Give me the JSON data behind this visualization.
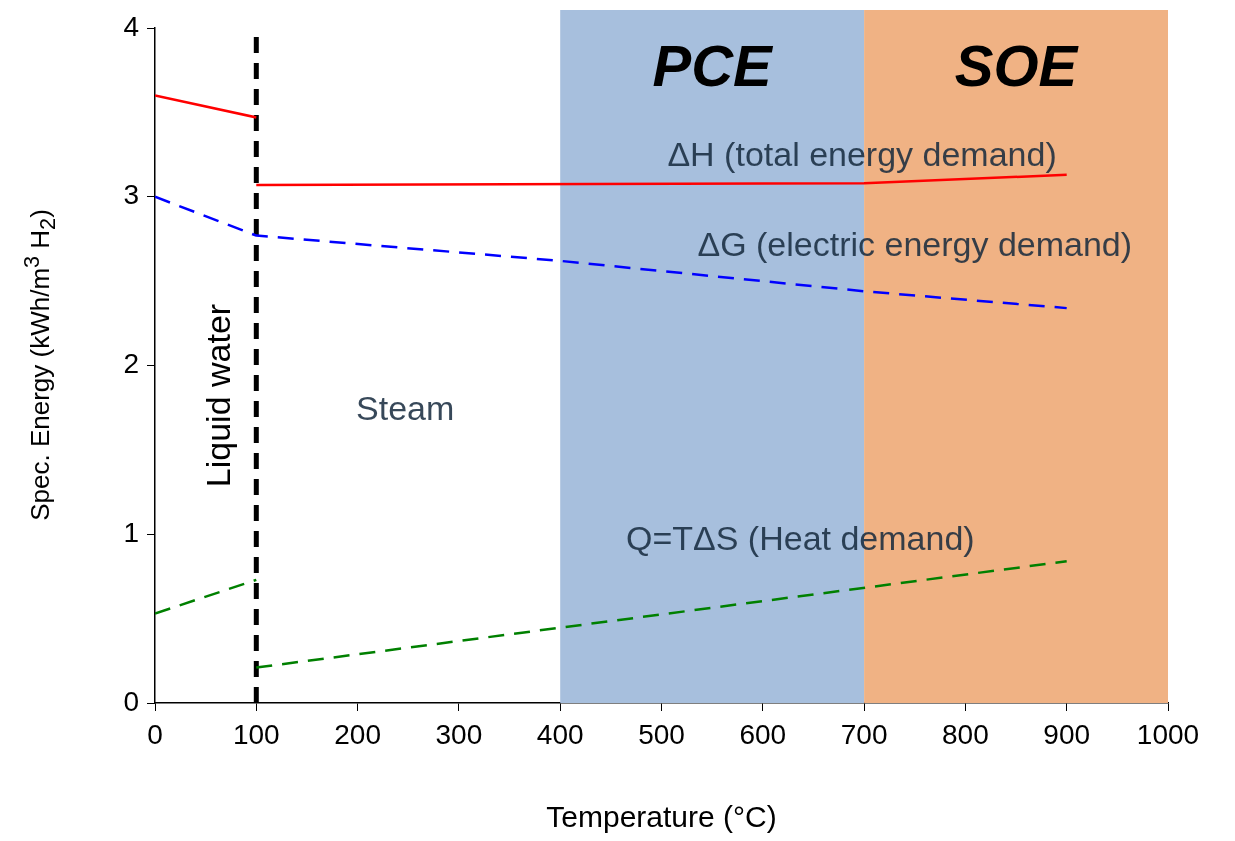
{
  "chart_data": {
    "type": "line",
    "xlabel": "Temperature (°C)",
    "ylabel": "Spec. Energy (kWh/m$^{3}$ H$_{2}$)",
    "xlim": [
      0,
      1000
    ],
    "xticks": [
      0,
      100,
      200,
      300,
      400,
      500,
      600,
      700,
      800,
      900,
      1000
    ],
    "ylim": [
      0,
      4
    ],
    "yticks": [
      0,
      1,
      2,
      3,
      4
    ],
    "grid": false,
    "legend": false,
    "marker": "none",
    "series": [
      {
        "color": "#ff0000",
        "line_style": "solid",
        "x": [
          0,
          100,
          100,
          700,
          900
        ],
        "values": [
          3.6,
          3.47,
          3.07,
          3.08,
          3.13
        ]
      },
      {
        "color": "#0000ff",
        "line_style": "dashed",
        "x": [
          0,
          100,
          400,
          700,
          900
        ],
        "values": [
          3.0,
          2.77,
          2.62,
          2.44,
          2.34
        ]
      },
      {
        "color": "#008000",
        "line_style": "dashed",
        "x": [
          0,
          100,
          100,
          900
        ],
        "values": [
          0.53,
          0.73,
          0.21,
          0.84
        ]
      }
    ],
    "bands": [
      {
        "axis": "x",
        "from": 400,
        "to": 700,
        "label": "PCE",
        "color": "#a7bfdd"
      },
      {
        "axis": "x",
        "from": 700,
        "to": 1000,
        "label": "SOE",
        "color": "#f0b284"
      }
    ],
    "ref_lines": [
      {
        "axis": "x",
        "value": 100,
        "label": "Liquid water",
        "color": "#000000",
        "line_style": "dashed"
      }
    ],
    "annotations": [
      "ΔH (total energy demand)",
      "ΔG (electric energy demand)",
      "Q=TΔS (Heat demand)",
      "Steam"
    ]
  }
}
